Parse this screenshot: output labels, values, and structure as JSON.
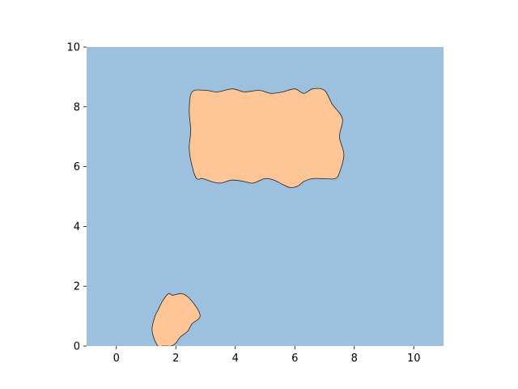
{
  "chart_data": {
    "type": "area",
    "title": "",
    "xlabel": "",
    "ylabel": "",
    "xlim": [
      -1,
      11
    ],
    "ylim": [
      0,
      10
    ],
    "grid": false,
    "x_ticks": [
      0,
      2,
      4,
      6,
      8,
      10
    ],
    "y_ticks": [
      0,
      2,
      4,
      6,
      8,
      10
    ],
    "x_tick_labels": [
      "0",
      "2",
      "4",
      "6",
      "8",
      "10"
    ],
    "y_tick_labels": [
      "0",
      "2",
      "4",
      "6",
      "8",
      "10"
    ],
    "background_color": "#9cc0de",
    "region_color": "#fec596",
    "outline_color": "#222222",
    "regions": [
      {
        "x": [
          2.55,
          3.0,
          3.4,
          3.9,
          4.3,
          4.8,
          5.2,
          5.6,
          6.0,
          6.3,
          6.6,
          7.0,
          7.25,
          7.6,
          7.5,
          7.65,
          7.5,
          7.35,
          6.9,
          6.6,
          6.3,
          6.1,
          5.85,
          5.6,
          5.3,
          5.0,
          4.6,
          4.3,
          3.9,
          3.5,
          3.2,
          2.9,
          2.7,
          2.55,
          2.45,
          2.5,
          2.45,
          2.55
        ],
        "y": [
          8.5,
          8.55,
          8.5,
          8.6,
          8.5,
          8.55,
          8.45,
          8.5,
          8.6,
          8.45,
          8.6,
          8.55,
          8.1,
          7.6,
          7.0,
          6.4,
          5.8,
          5.6,
          5.6,
          5.6,
          5.5,
          5.35,
          5.3,
          5.4,
          5.55,
          5.6,
          5.45,
          5.5,
          5.55,
          5.45,
          5.5,
          5.6,
          5.6,
          6.0,
          6.6,
          7.2,
          7.9,
          8.5
        ]
      },
      {
        "x": [
          1.4,
          1.55,
          1.75,
          1.9,
          2.2,
          2.45,
          2.75,
          2.8,
          2.55,
          2.4,
          2.15,
          2.0,
          1.85,
          1.7,
          1.55,
          1.4,
          1.25,
          1.2,
          1.3,
          1.4
        ],
        "y": [
          1.2,
          1.5,
          1.75,
          1.7,
          1.75,
          1.6,
          1.2,
          0.95,
          0.75,
          0.5,
          0.3,
          0.1,
          0.0,
          0.0,
          0.0,
          0.0,
          0.3,
          0.6,
          1.0,
          1.2
        ]
      }
    ]
  }
}
